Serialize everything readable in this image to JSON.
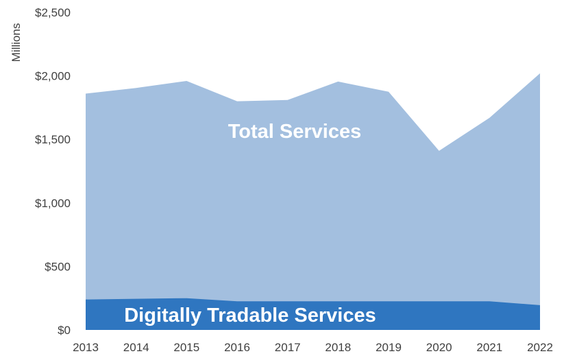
{
  "chart_data": {
    "type": "area",
    "x": [
      "2013",
      "2014",
      "2015",
      "2016",
      "2017",
      "2018",
      "2019",
      "2020",
      "2021",
      "2022"
    ],
    "ylabel": "Millions",
    "ylim": [
      0,
      2500
    ],
    "yticks": [
      0,
      500,
      1000,
      1500,
      2000,
      2500
    ],
    "ytick_labels": [
      "$0",
      "$500",
      "$1,000",
      "$1,500",
      "$2,000",
      "$2,500"
    ],
    "grid": false,
    "legend": "none",
    "series": [
      {
        "name": "Total Services",
        "color": "#a3bfdf",
        "values": [
          1860,
          1905,
          1960,
          1800,
          1810,
          1955,
          1875,
          1410,
          1670,
          2020
        ]
      },
      {
        "name": "Digitally Tradable Services",
        "color": "#2f76c0",
        "values": [
          240,
          245,
          250,
          225,
          225,
          225,
          225,
          225,
          225,
          195
        ]
      }
    ]
  }
}
